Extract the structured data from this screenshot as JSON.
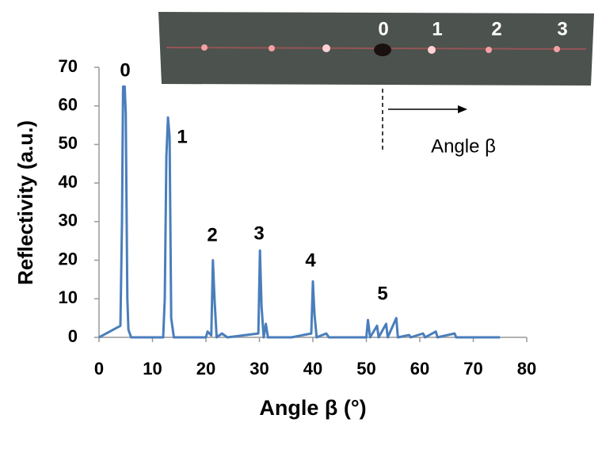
{
  "chart_data": {
    "type": "line",
    "ylabel": "Reflectivity (a.u.)",
    "xlabel": "Angle β (°)",
    "x": [
      0,
      4.0,
      4.3,
      4.5,
      4.8,
      5.0,
      5.3,
      5.5,
      6,
      12,
      12.3,
      12.6,
      12.9,
      13.2,
      13.5,
      14,
      20,
      20.3,
      21,
      21.3,
      21.6,
      22,
      23,
      24,
      29.8,
      30.1,
      30.4,
      30.8,
      31.2,
      31.6,
      36,
      39.7,
      40,
      40.3,
      40.7,
      42.5,
      43,
      50,
      50.3,
      50.7,
      52,
      52.3,
      53.7,
      54,
      55.6,
      55.9,
      58,
      58.3,
      60.6,
      61,
      63,
      63.3,
      66.5,
      66.8,
      75
    ],
    "series": [
      {
        "color": "#4a7ebb",
        "values": [
          0,
          3,
          30,
          65,
          65,
          58,
          10,
          2,
          0,
          0,
          10,
          47,
          57,
          52,
          5,
          0,
          0,
          1.5,
          0.5,
          20,
          10,
          0,
          1,
          0,
          1,
          22.5,
          8,
          0,
          3.5,
          0,
          0,
          1,
          14.5,
          6,
          0,
          1,
          0,
          0,
          4.5,
          0,
          3,
          0,
          3.5,
          0,
          5,
          0,
          0.6,
          0,
          1,
          0,
          1.5,
          0,
          1,
          0,
          0
        ]
      }
    ],
    "xlim": [
      0,
      80
    ],
    "xticks": [
      0,
      10,
      20,
      30,
      40,
      50,
      60,
      70,
      80
    ],
    "ylim": [
      0,
      70
    ],
    "yticks": [
      0,
      10,
      20,
      30,
      40,
      50,
      60,
      70
    ],
    "annotations": [
      "0",
      "1",
      "2",
      "3",
      "4",
      "5"
    ],
    "inset": {
      "order_labels": [
        "0",
        "1",
        "2",
        "3"
      ],
      "arrow_label": "Angle β"
    }
  }
}
